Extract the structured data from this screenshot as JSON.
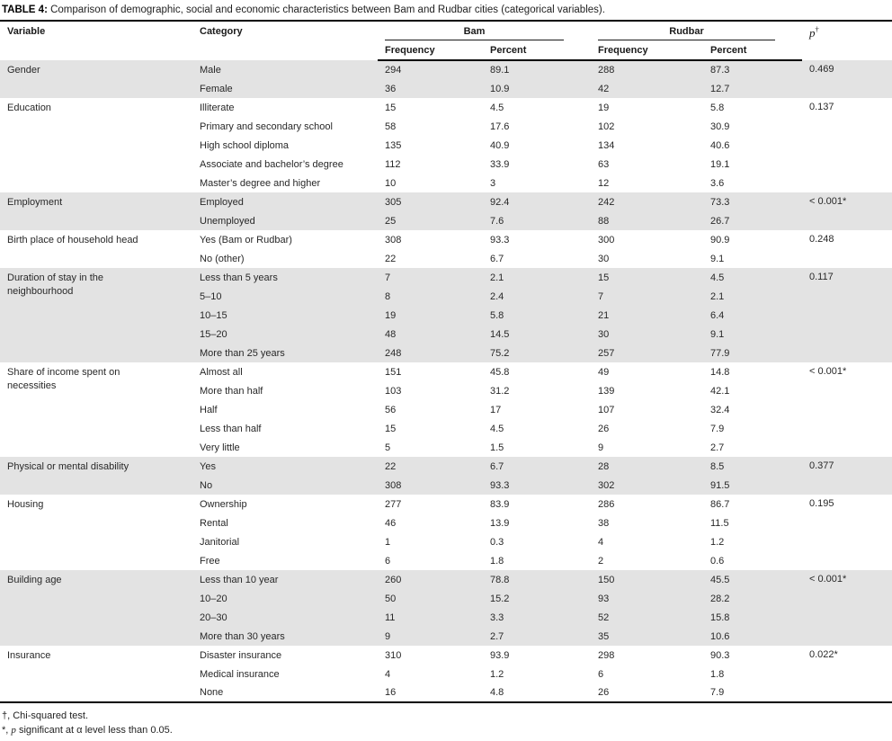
{
  "title": {
    "label": "TABLE 4:",
    "text": " Comparison of demographic, social and economic characteristics between Bam and Rudbar cities (categorical variables)."
  },
  "table": {
    "header": {
      "variable": "Variable",
      "category": "Category",
      "group1": "Bam",
      "group2": "Rudbar",
      "p_label": "p",
      "p_dagger": "†",
      "sub_freq1": "Frequency",
      "sub_pct1": "Percent",
      "sub_freq2": "Frequency",
      "sub_pct2": "Percent"
    },
    "groups": [
      {
        "variable": "Gender",
        "shaded": true,
        "p": "0.469",
        "rows": [
          {
            "category": "Male",
            "bam_freq": "294",
            "bam_pct": "89.1",
            "rud_freq": "288",
            "rud_pct": "87.3"
          },
          {
            "category": "Female",
            "bam_freq": "36",
            "bam_pct": "10.9",
            "rud_freq": "42",
            "rud_pct": "12.7"
          }
        ]
      },
      {
        "variable": "Education",
        "shaded": false,
        "p": "0.137",
        "rows": [
          {
            "category": "Illiterate",
            "bam_freq": "15",
            "bam_pct": "4.5",
            "rud_freq": "19",
            "rud_pct": "5.8"
          },
          {
            "category": "Primary and secondary school",
            "bam_freq": "58",
            "bam_pct": "17.6",
            "rud_freq": "102",
            "rud_pct": "30.9"
          },
          {
            "category": "High school diploma",
            "bam_freq": "135",
            "bam_pct": "40.9",
            "rud_freq": "134",
            "rud_pct": "40.6"
          },
          {
            "category": "Associate and bachelor’s degree",
            "bam_freq": "112",
            "bam_pct": "33.9",
            "rud_freq": "63",
            "rud_pct": "19.1"
          },
          {
            "category": "Master’s degree and higher",
            "bam_freq": "10",
            "bam_pct": "3",
            "rud_freq": "12",
            "rud_pct": "3.6"
          }
        ]
      },
      {
        "variable": "Employment",
        "shaded": true,
        "p": "< 0.001*",
        "rows": [
          {
            "category": "Employed",
            "bam_freq": "305",
            "bam_pct": "92.4",
            "rud_freq": "242",
            "rud_pct": "73.3"
          },
          {
            "category": "Unemployed",
            "bam_freq": "25",
            "bam_pct": "7.6",
            "rud_freq": "88",
            "rud_pct": "26.7"
          }
        ]
      },
      {
        "variable": "Birth place of household head",
        "shaded": false,
        "p": "0.248",
        "rows": [
          {
            "category": "Yes (Bam or Rudbar)",
            "bam_freq": "308",
            "bam_pct": "93.3",
            "rud_freq": "300",
            "rud_pct": "90.9"
          },
          {
            "category": "No (other)",
            "bam_freq": "22",
            "bam_pct": "6.7",
            "rud_freq": "30",
            "rud_pct": "9.1"
          }
        ]
      },
      {
        "variable": "Duration of stay in the\nneighbourhood",
        "shaded": true,
        "p": "0.117",
        "rows": [
          {
            "category": "Less than 5 years",
            "bam_freq": "7",
            "bam_pct": "2.1",
            "rud_freq": "15",
            "rud_pct": "4.5"
          },
          {
            "category": "5–10",
            "bam_freq": "8",
            "bam_pct": "2.4",
            "rud_freq": "7",
            "rud_pct": "2.1"
          },
          {
            "category": "10–15",
            "bam_freq": "19",
            "bam_pct": "5.8",
            "rud_freq": "21",
            "rud_pct": "6.4"
          },
          {
            "category": "15–20",
            "bam_freq": "48",
            "bam_pct": "14.5",
            "rud_freq": "30",
            "rud_pct": "9.1"
          },
          {
            "category": "More than 25 years",
            "bam_freq": "248",
            "bam_pct": "75.2",
            "rud_freq": "257",
            "rud_pct": "77.9"
          }
        ]
      },
      {
        "variable": "Share of income spent on\nnecessities",
        "shaded": false,
        "p": "< 0.001*",
        "rows": [
          {
            "category": "Almost all",
            "bam_freq": "151",
            "bam_pct": "45.8",
            "rud_freq": "49",
            "rud_pct": "14.8"
          },
          {
            "category": "More than half",
            "bam_freq": "103",
            "bam_pct": "31.2",
            "rud_freq": "139",
            "rud_pct": "42.1"
          },
          {
            "category": "Half",
            "bam_freq": "56",
            "bam_pct": "17",
            "rud_freq": "107",
            "rud_pct": "32.4"
          },
          {
            "category": "Less than half",
            "bam_freq": "15",
            "bam_pct": "4.5",
            "rud_freq": "26",
            "rud_pct": "7.9"
          },
          {
            "category": "Very little",
            "bam_freq": "5",
            "bam_pct": "1.5",
            "rud_freq": "9",
            "rud_pct": "2.7"
          }
        ]
      },
      {
        "variable": "Physical or mental disability",
        "shaded": true,
        "p": "0.377",
        "rows": [
          {
            "category": "Yes",
            "bam_freq": "22",
            "bam_pct": "6.7",
            "rud_freq": "28",
            "rud_pct": "8.5"
          },
          {
            "category": "No",
            "bam_freq": "308",
            "bam_pct": "93.3",
            "rud_freq": "302",
            "rud_pct": "91.5"
          }
        ]
      },
      {
        "variable": "Housing",
        "shaded": false,
        "p": "0.195",
        "rows": [
          {
            "category": "Ownership",
            "bam_freq": "277",
            "bam_pct": "83.9",
            "rud_freq": "286",
            "rud_pct": "86.7"
          },
          {
            "category": "Rental",
            "bam_freq": "46",
            "bam_pct": "13.9",
            "rud_freq": "38",
            "rud_pct": "11.5"
          },
          {
            "category": "Janitorial",
            "bam_freq": "1",
            "bam_pct": "0.3",
            "rud_freq": "4",
            "rud_pct": "1.2"
          },
          {
            "category": "Free",
            "bam_freq": "6",
            "bam_pct": "1.8",
            "rud_freq": "2",
            "rud_pct": "0.6"
          }
        ]
      },
      {
        "variable": "Building age",
        "shaded": true,
        "p": "< 0.001*",
        "rows": [
          {
            "category": "Less than 10 year",
            "bam_freq": "260",
            "bam_pct": "78.8",
            "rud_freq": "150",
            "rud_pct": "45.5"
          },
          {
            "category": "10–20",
            "bam_freq": "50",
            "bam_pct": "15.2",
            "rud_freq": "93",
            "rud_pct": "28.2"
          },
          {
            "category": "20–30",
            "bam_freq": "11",
            "bam_pct": "3.3",
            "rud_freq": "52",
            "rud_pct": "15.8"
          },
          {
            "category": "More than 30 years",
            "bam_freq": "9",
            "bam_pct": "2.7",
            "rud_freq": "35",
            "rud_pct": "10.6"
          }
        ]
      },
      {
        "variable": "Insurance",
        "shaded": false,
        "p": "0.022*",
        "rows": [
          {
            "category": "Disaster insurance",
            "bam_freq": "310",
            "bam_pct": "93.9",
            "rud_freq": "298",
            "rud_pct": "90.3"
          },
          {
            "category": "Medical insurance",
            "bam_freq": "4",
            "bam_pct": "1.2",
            "rud_freq": "6",
            "rud_pct": "1.8"
          },
          {
            "category": "None",
            "bam_freq": "16",
            "bam_pct": "4.8",
            "rud_freq": "26",
            "rud_pct": "7.9"
          }
        ]
      }
    ]
  },
  "footnotes": [
    {
      "symbol": "†, ",
      "italic": "",
      "text": "Chi-squared test."
    },
    {
      "symbol": "*, ",
      "italic": "p",
      "text": " significant at α level less than 0.05."
    }
  ],
  "colors": {
    "shaded_row": "#e3e3e3",
    "rule": "#000000",
    "text": "#282828"
  }
}
